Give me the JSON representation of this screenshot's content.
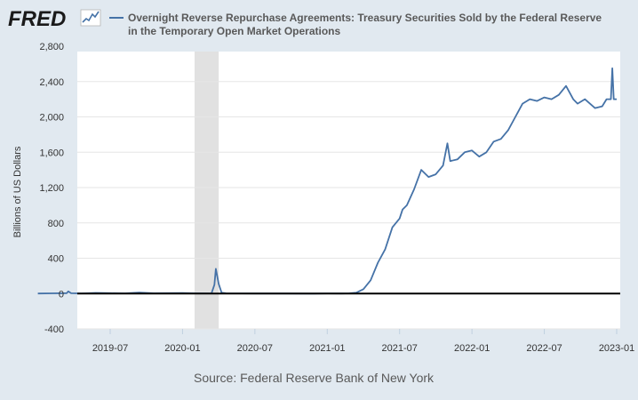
{
  "app": {
    "logo_text": "FRED",
    "source": "Source: Federal Reserve Bank of New York"
  },
  "colors": {
    "background": "#e1e9f0",
    "plot_background": "#ffffff",
    "series": "#4572a7",
    "recession": "#e1e1e1",
    "zero_line": "#000000",
    "grid": "#e6e6e6"
  },
  "chart_data": {
    "type": "line",
    "title": "Overnight Reverse Repurchase Agreements: Treasury Securities Sold by the Federal Reserve in the Temporary Open Market Operations",
    "title_lines": [
      "Overnight Reverse Repurchase Agreements: Treasury Securities Sold by the Federal Reserve",
      "in the Temporary Open Market Operations"
    ],
    "xlabel": "",
    "ylabel": "Billions of US Dollars",
    "ylim": [
      -400,
      2800
    ],
    "yticks": [
      -400,
      0,
      400,
      800,
      1200,
      1600,
      2000,
      2400,
      2800
    ],
    "ytick_labels": [
      "-400",
      "0",
      "400",
      "800",
      "1,200",
      "1,600",
      "2,000",
      "2,400",
      "2,800"
    ],
    "xlim": [
      2019.0,
      2023.0
    ],
    "xticks": [
      2019.5,
      2020.0,
      2020.5,
      2021.0,
      2021.5,
      2022.0,
      2022.5,
      2023.0
    ],
    "xtick_labels": [
      "2019-07",
      "2020-01",
      "2020-07",
      "2021-01",
      "2021-07",
      "2022-01",
      "2022-07",
      "2023-01"
    ],
    "recession": [
      2020.083,
      2020.25
    ],
    "grid": true,
    "legend": "top-left",
    "series": [
      {
        "name": "Overnight Reverse Repurchase Agreements: Treasury Securities Sold by the Federal Reserve in the Temporary Open Market Operations",
        "x": [
          2019.0,
          2019.1,
          2019.2,
          2019.21,
          2019.23,
          2019.3,
          2019.4,
          2019.5,
          2019.6,
          2019.7,
          2019.8,
          2019.9,
          2020.0,
          2020.1,
          2020.2,
          2020.22,
          2020.23,
          2020.25,
          2020.27,
          2020.3,
          2020.4,
          2020.5,
          2020.7,
          2020.9,
          2021.0,
          2021.1,
          2021.15,
          2021.2,
          2021.25,
          2021.3,
          2021.35,
          2021.4,
          2021.45,
          2021.5,
          2021.52,
          2021.55,
          2021.6,
          2021.65,
          2021.7,
          2021.75,
          2021.8,
          2021.83,
          2021.85,
          2021.9,
          2021.95,
          2022.0,
          2022.05,
          2022.1,
          2022.15,
          2022.2,
          2022.25,
          2022.3,
          2022.35,
          2022.4,
          2022.45,
          2022.5,
          2022.55,
          2022.6,
          2022.65,
          2022.7,
          2022.73,
          2022.78,
          2022.85,
          2022.9,
          2022.93,
          2022.96,
          2022.97,
          2022.98,
          2023.0
        ],
        "values": [
          1,
          3,
          5,
          25,
          4,
          2,
          8,
          5,
          3,
          12,
          4,
          5,
          6,
          3,
          2,
          100,
          280,
          110,
          10,
          4,
          2,
          1,
          1,
          0,
          2,
          1,
          3,
          10,
          50,
          150,
          350,
          500,
          750,
          850,
          950,
          1000,
          1180,
          1400,
          1320,
          1350,
          1450,
          1700,
          1500,
          1520,
          1600,
          1620,
          1550,
          1600,
          1720,
          1750,
          1850,
          2000,
          2150,
          2200,
          2180,
          2220,
          2200,
          2250,
          2350,
          2200,
          2150,
          2200,
          2100,
          2120,
          2200,
          2200,
          2550,
          2200,
          2200
        ]
      }
    ]
  }
}
